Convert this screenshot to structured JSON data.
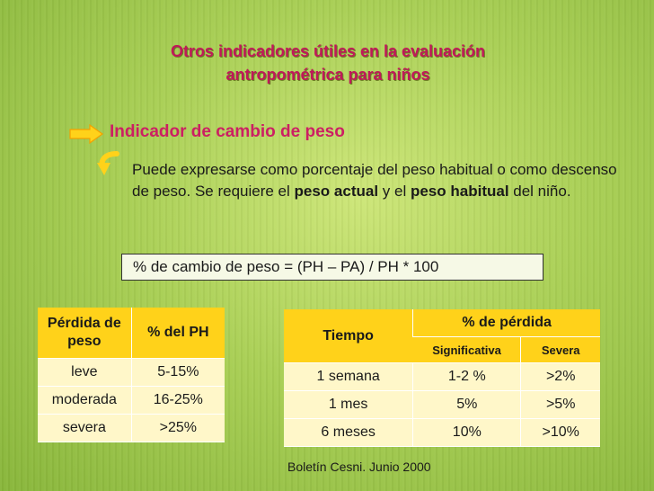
{
  "title": {
    "line1": "Otros indicadores útiles en la evaluación",
    "line2": "antropométrica para niños"
  },
  "subtitle": "Indicador de cambio de peso",
  "description": {
    "part1": "Puede expresarse como porcentaje del peso habitual o como descenso de peso. Se requiere el ",
    "bold1": "peso actual",
    "part2": " y el ",
    "bold2": "peso habitual",
    "part3": " del niño."
  },
  "formula": "% de cambio de peso = (PH – PA) / PH * 100",
  "table1": {
    "headers": [
      "Pérdida de peso",
      "% del PH"
    ],
    "rows": [
      [
        "leve",
        "5-15%"
      ],
      [
        "moderada",
        "16-25%"
      ],
      [
        "severa",
        ">25%"
      ]
    ]
  },
  "table2": {
    "headers": [
      "Tiempo",
      "% de pérdida"
    ],
    "subheaders": [
      "Significativa",
      "Severa"
    ],
    "rows": [
      [
        "1 semana",
        "1-2 %",
        ">2%"
      ],
      [
        "1 mes",
        "5%",
        ">5%"
      ],
      [
        "6 meses",
        "10%",
        ">10%"
      ]
    ]
  },
  "citation": "Boletín Cesni. Junio 2000",
  "colors": {
    "title": "#c0185a",
    "subtitle": "#cc1f63",
    "header_bg": "#ffd21a",
    "cell_bg": "#fff7c9",
    "arrow": "#ffd21a"
  },
  "icons": [
    "arrow-right-icon",
    "curved-arrow-icon"
  ]
}
